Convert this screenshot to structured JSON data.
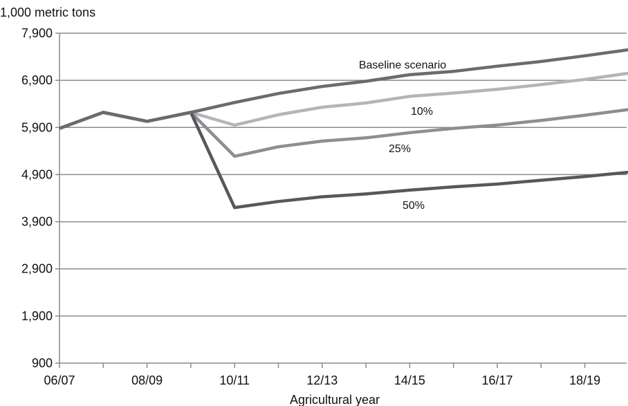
{
  "chart_data": {
    "type": "line",
    "title": "",
    "unit_label": "1,000 metric tons",
    "xlabel": "Agricultural year",
    "ylabel": "",
    "categories": [
      "06/07",
      "07/08",
      "08/09",
      "09/10",
      "10/11",
      "11/12",
      "12/13",
      "13/14",
      "14/15",
      "15/16",
      "16/17",
      "17/18",
      "18/19",
      "19/20"
    ],
    "x_tick_labels": [
      "06/07",
      "",
      "08/09",
      "",
      "10/11",
      "",
      "12/13",
      "",
      "14/15",
      "",
      "16/17",
      "",
      "18/19",
      ""
    ],
    "y_ticks": [
      "900",
      "1,900",
      "2,900",
      "3,900",
      "4,900",
      "5,900",
      "6,900",
      "7,900"
    ],
    "y_tick_values": [
      900,
      1900,
      2900,
      3900,
      4900,
      5900,
      6900,
      7900
    ],
    "ylim": [
      900,
      7900
    ],
    "grid": "horizontal",
    "series": [
      {
        "name": "Baseline scenario",
        "color": "#6b6b6f",
        "values": [
          5880,
          6220,
          6030,
          6220,
          6430,
          6620,
          6770,
          6880,
          7020,
          7090,
          7200,
          7300,
          7420,
          7550
        ]
      },
      {
        "name": "10%",
        "color": "#b5b5b8",
        "values": [
          5880,
          6220,
          6030,
          6220,
          5950,
          6170,
          6330,
          6420,
          6560,
          6630,
          6710,
          6810,
          6920,
          7050
        ]
      },
      {
        "name": "25%",
        "color": "#8e8e92",
        "values": [
          5880,
          6220,
          6030,
          6220,
          5290,
          5490,
          5610,
          5680,
          5790,
          5880,
          5950,
          6050,
          6160,
          6280
        ]
      },
      {
        "name": "50%",
        "color": "#58585c",
        "values": [
          5880,
          6220,
          6030,
          6220,
          4200,
          4330,
          4430,
          4490,
          4570,
          4640,
          4700,
          4780,
          4860,
          4950
        ]
      }
    ]
  }
}
